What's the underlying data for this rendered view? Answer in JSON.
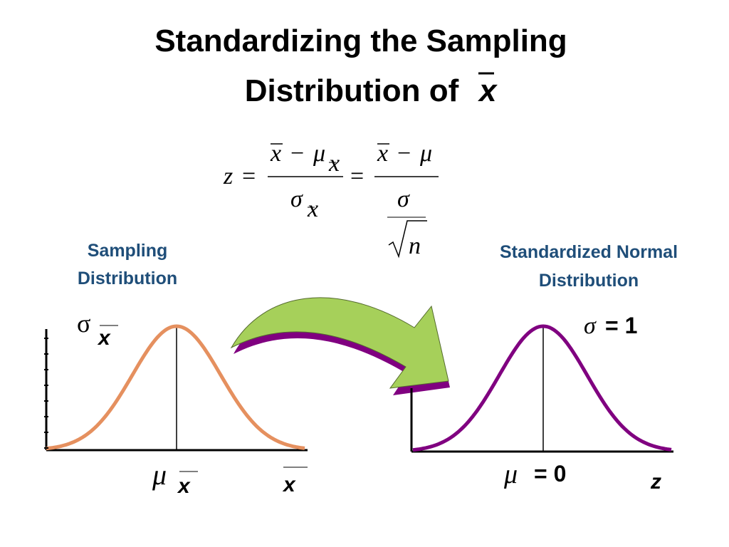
{
  "title": {
    "line1": "Standardizing the Sampling",
    "line2": "Distribution of",
    "symbol": "x"
  },
  "formula": {
    "tokens": [
      "z",
      "=",
      "x",
      "−",
      "μ",
      "x",
      "σ",
      "x",
      "=",
      "x",
      "−",
      "μ",
      "σ",
      "n"
    ]
  },
  "left": {
    "heading": [
      "Sampling",
      "Distribution"
    ],
    "sigma": "σ",
    "sigma_sub": "x",
    "mu": "μ",
    "mu_sub": "x",
    "axis": "x"
  },
  "right": {
    "heading": [
      "Standardized Normal",
      "Distribution"
    ],
    "sigma": "σ",
    "sigma_value": "= 1",
    "mu": "μ",
    "mu_value": "= 0",
    "axis": "z"
  }
}
